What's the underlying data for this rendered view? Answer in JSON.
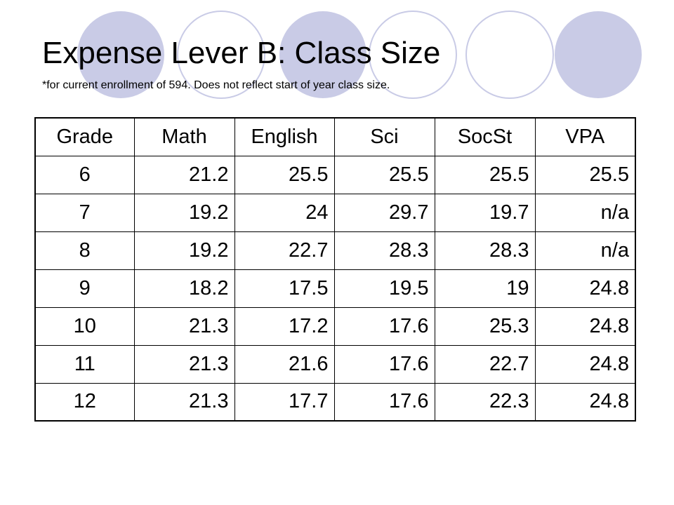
{
  "slide": {
    "title": "Expense Lever B: Class Size",
    "subtitle": "*for current enrollment of 594. Does not reflect start of year class size.",
    "decoration_color": "#c9cbe6"
  },
  "table": {
    "headers": [
      "Grade",
      "Math",
      "English",
      "Sci",
      "SocSt",
      "VPA"
    ],
    "rows": [
      [
        "6",
        "21.2",
        "25.5",
        "25.5",
        "25.5",
        "25.5"
      ],
      [
        "7",
        "19.2",
        "24",
        "29.7",
        "19.7",
        "n/a"
      ],
      [
        "8",
        "19.2",
        "22.7",
        "28.3",
        "28.3",
        "n/a"
      ],
      [
        "9",
        "18.2",
        "17.5",
        "19.5",
        "19",
        "24.8"
      ],
      [
        "10",
        "21.3",
        "17.2",
        "17.6",
        "25.3",
        "24.8"
      ],
      [
        "11",
        "21.3",
        "21.6",
        "17.6",
        "22.7",
        "24.8"
      ],
      [
        "12",
        "21.3",
        "17.7",
        "17.6",
        "22.3",
        "24.8"
      ]
    ]
  }
}
